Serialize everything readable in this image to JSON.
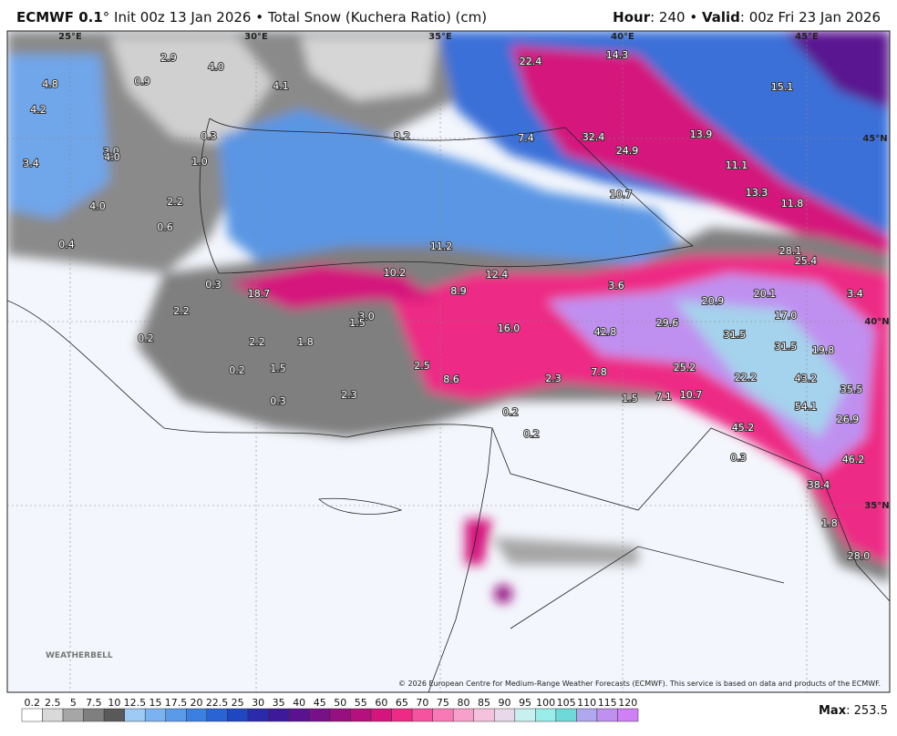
{
  "header": {
    "model": "ECMWF 0.1",
    "subtitle": "° Init 00z 13 Jan 2026 • Total Snow (Kuchera Ratio) (cm)",
    "hour_label": "Hour",
    "hour_value": ": 240 • ",
    "valid_label": "Valid",
    "valid_value": ": 00z Fri 23 Jan 2026"
  },
  "map": {
    "graticule": [
      "25°E",
      "30°E",
      "35°E",
      "40°E",
      "45°E",
      "45°N",
      "40°N",
      "35°N"
    ],
    "labels": [
      "2.9",
      "4.0",
      "4.8",
      "0.9",
      "4.1",
      "4.2",
      "0.3",
      "3.0",
      "4.0",
      "3.4",
      "1.0",
      "2.2",
      "4.0",
      "0.6",
      "0.4",
      "9.2",
      "7.4",
      "22.4",
      "14.3",
      "15.1",
      "32.4",
      "24.9",
      "13.9",
      "11.1",
      "13.3",
      "11.8",
      "10.7",
      "11.2",
      "10.2",
      "12.4",
      "8.9",
      "18.7",
      "0.3",
      "2.2",
      "3.0",
      "1.5",
      "16.0",
      "42.8",
      "3.6",
      "29.6",
      "20.9",
      "20.1",
      "17.0",
      "3.4",
      "28.1",
      "25.4",
      "31.5",
      "31.5",
      "19.8",
      "0.2",
      "2.2",
      "1.8",
      "0.2",
      "1.5",
      "2.5",
      "0.3",
      "2.3",
      "8.6",
      "2.3",
      "7.8",
      "25.2",
      "22.2",
      "43.2",
      "35.5",
      "1.5",
      "7.1",
      "10.7",
      "54.1",
      "26.9",
      "45.2",
      "0.2",
      "0.2",
      "0.3",
      "46.2",
      "38.4",
      "1.8",
      "28.0"
    ],
    "logo": "WEATHERBELL",
    "copyright": "© 2026 European Centre for Medium-Range Weather Forecasts (ECMWF). This service is based on data and products of the ECMWF."
  },
  "colorbar": {
    "ticks": [
      "0.2",
      "2.5",
      "5",
      "7.5",
      "10",
      "12.5",
      "15",
      "17.5",
      "20",
      "22.5",
      "25",
      "30",
      "35",
      "40",
      "45",
      "50",
      "55",
      "60",
      "65",
      "70",
      "75",
      "80",
      "85",
      "90",
      "95",
      "100",
      "105",
      "110",
      "115",
      "120"
    ],
    "colors": [
      "#ffffff",
      "#d9d9d9",
      "#a6a6a6",
      "#7f7f7f",
      "#595959",
      "#9ecbf5",
      "#7ab4f0",
      "#5a9be8",
      "#3b7fe0",
      "#2a63d4",
      "#1f47c2",
      "#2a2aaa",
      "#3d1a99",
      "#5a1290",
      "#781088",
      "#961080",
      "#b5107d",
      "#d4157d",
      "#ed2a85",
      "#f552a0",
      "#f77ab6",
      "#f8a0cc",
      "#f5c2dd",
      "#e8d8ea",
      "#c8f0f0",
      "#9aeeea",
      "#6fd8d8",
      "#b0a8ee",
      "#c090f0",
      "#d080f5"
    ]
  },
  "max": {
    "label": "Max",
    "value": ": 253.5"
  }
}
